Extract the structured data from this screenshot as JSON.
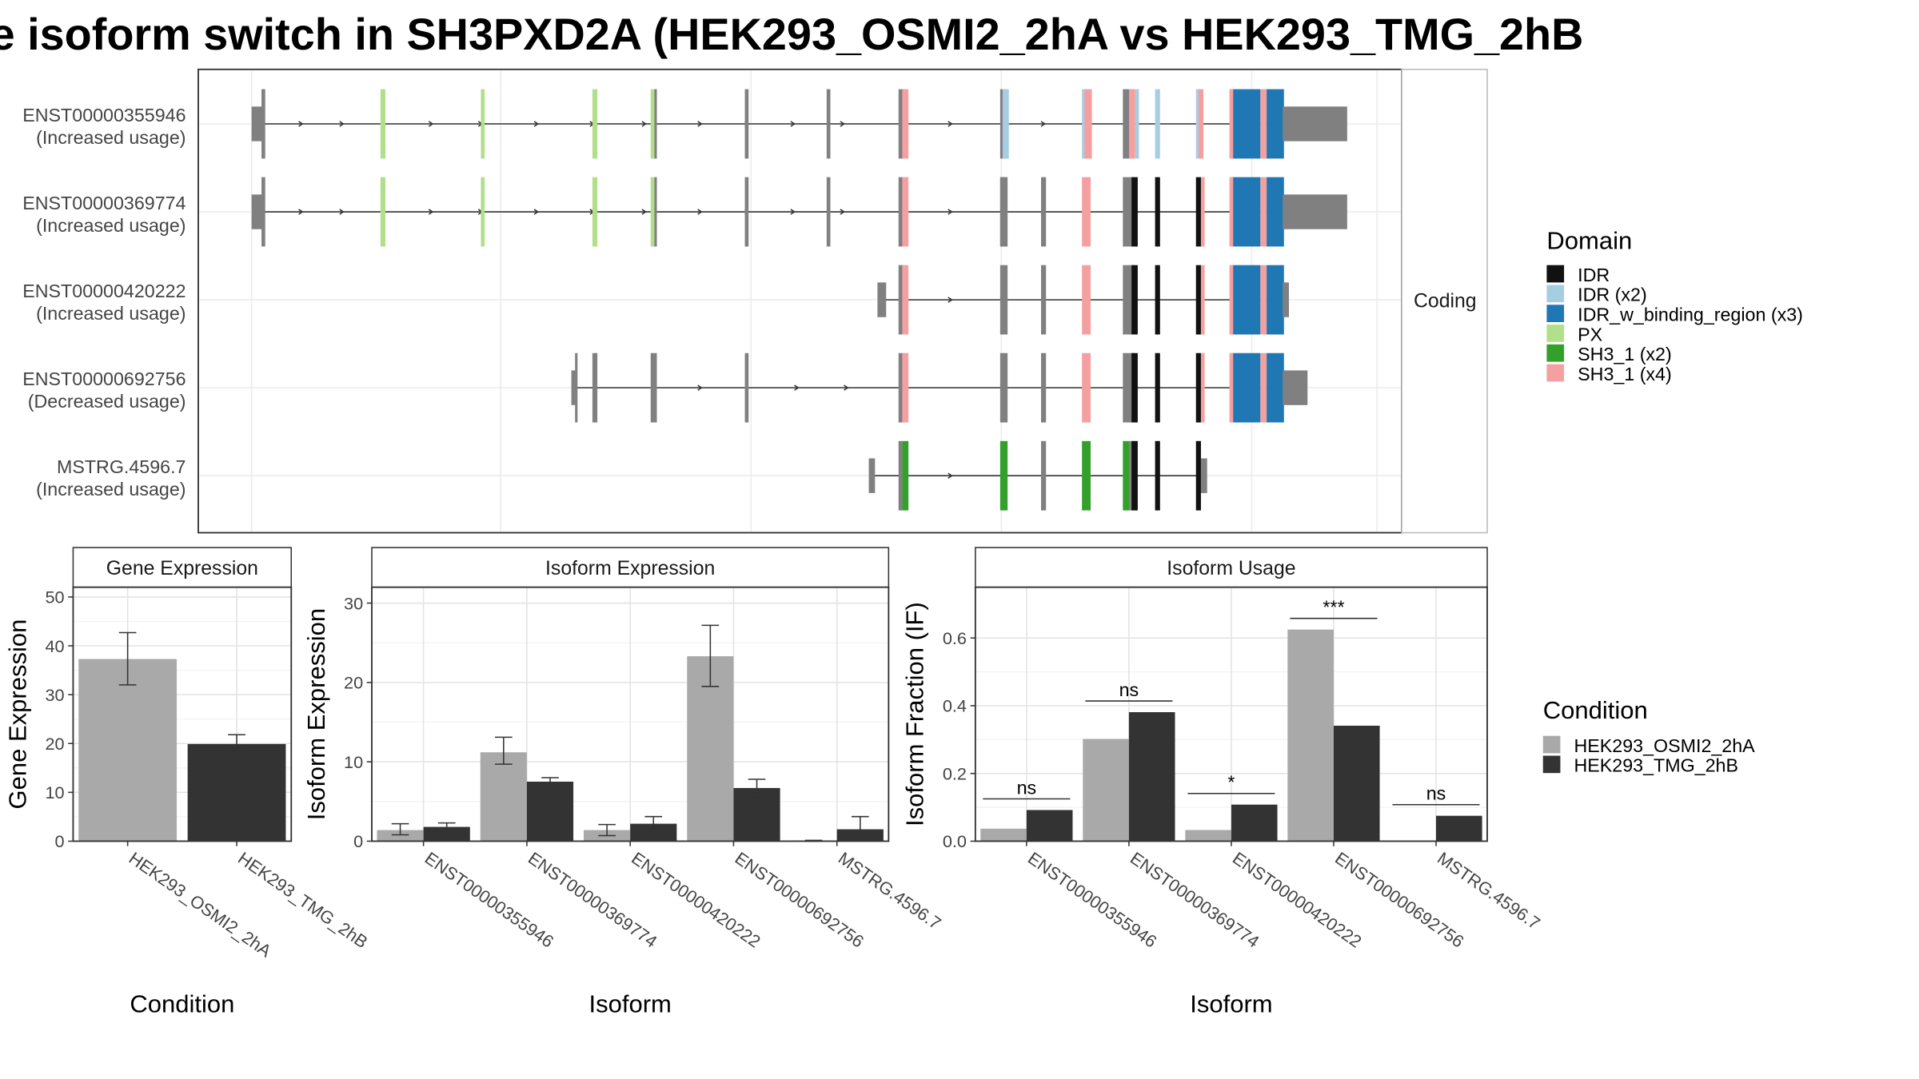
{
  "title": "e isoform switch in SH3PXD2A (HEK293_OSMI2_2hA vs HEK293_TMG_2hB",
  "facet_label": "Coding",
  "colors": {
    "IDR": "#111111",
    "IDR (x2)": "#a6cee3",
    "IDR_w_binding_region (x3)": "#1f78b4",
    "PX": "#b2df8a",
    "SH3_1 (x2)": "#33a02c",
    "SH3_1 (x4)": "#f4a0a0",
    "exon": "#808080",
    "HEK293_OSMI2_2hA": "#a9a9a9",
    "HEK293_TMG_2hB": "#333333"
  },
  "domain_legend": {
    "title": "Domain",
    "items": [
      "IDR",
      "IDR (x2)",
      "IDR_w_binding_region (x3)",
      "PX",
      "SH3_1 (x2)",
      "SH3_1 (x4)"
    ]
  },
  "condition_legend": {
    "title": "Condition",
    "items": [
      "HEK293_OSMI2_2hA",
      "HEK293_TMG_2hB"
    ]
  },
  "transcripts": [
    {
      "id": "ENST00000355946",
      "usage": "(Increased usage)"
    },
    {
      "id": "ENST00000369774",
      "usage": "(Increased usage)"
    },
    {
      "id": "ENST00000420222",
      "usage": "(Increased usage)"
    },
    {
      "id": "ENST00000692756",
      "usage": "(Decreased usage)"
    },
    {
      "id": "MSTRG.4596.7",
      "usage": "(Increased usage)"
    }
  ],
  "chart_data": [
    {
      "type": "bar",
      "panel": "Gene Expression",
      "xlabel": "Condition",
      "ylabel": "Gene Expression",
      "categories": [
        "HEK293_OSMI2_2hA",
        "HEK293_TMG_2hB"
      ],
      "values": [
        37.3,
        19.9
      ],
      "errors": [
        [
          32.0,
          42.7
        ],
        [
          18.5,
          21.8
        ]
      ],
      "ylim": [
        0,
        52
      ],
      "yticks": [
        0,
        10,
        20,
        30,
        40,
        50
      ]
    },
    {
      "type": "bar",
      "panel": "Isoform Expression",
      "xlabel": "Isoform",
      "ylabel": "Isoform Expression",
      "categories": [
        "ENST00000355946",
        "ENST00000369774",
        "ENST00000420222",
        "ENST00000692756",
        "MSTRG.4596.7"
      ],
      "series": [
        {
          "name": "HEK293_OSMI2_2hA",
          "values": [
            1.4,
            11.2,
            1.4,
            23.3,
            0.1
          ],
          "errors": [
            [
              0.8,
              2.2
            ],
            [
              9.7,
              13.1
            ],
            [
              0.7,
              2.1
            ],
            [
              19.5,
              27.2
            ],
            [
              0.0,
              0.1
            ]
          ]
        },
        {
          "name": "HEK293_TMG_2hB",
          "values": [
            1.8,
            7.5,
            2.2,
            6.7,
            1.5
          ],
          "errors": [
            [
              1.3,
              2.3
            ],
            [
              7.0,
              8.0
            ],
            [
              1.4,
              3.1
            ],
            [
              5.6,
              7.8
            ],
            [
              0.4,
              3.1
            ]
          ]
        }
      ],
      "ylim": [
        0,
        32
      ],
      "yticks": [
        0,
        10,
        20,
        30
      ]
    },
    {
      "type": "bar",
      "panel": "Isoform Usage",
      "xlabel": "Isoform",
      "ylabel": "Isoform Fraction (IF)",
      "categories": [
        "ENST00000355946",
        "ENST00000369774",
        "ENST00000420222",
        "ENST00000692756",
        "MSTRG.4596.7"
      ],
      "series": [
        {
          "name": "HEK293_OSMI2_2hA",
          "values": [
            0.037,
            0.302,
            0.033,
            0.625,
            0.001
          ]
        },
        {
          "name": "HEK293_TMG_2hB",
          "values": [
            0.092,
            0.381,
            0.108,
            0.341,
            0.075
          ]
        }
      ],
      "significance": [
        "ns",
        "ns",
        "*",
        "***",
        "ns"
      ],
      "ylim": [
        0,
        0.75
      ],
      "yticks": [
        0.0,
        0.2,
        0.4,
        0.6
      ],
      "ytick_labels": [
        "0.0",
        "0.2",
        "0.4",
        "0.6"
      ]
    }
  ]
}
